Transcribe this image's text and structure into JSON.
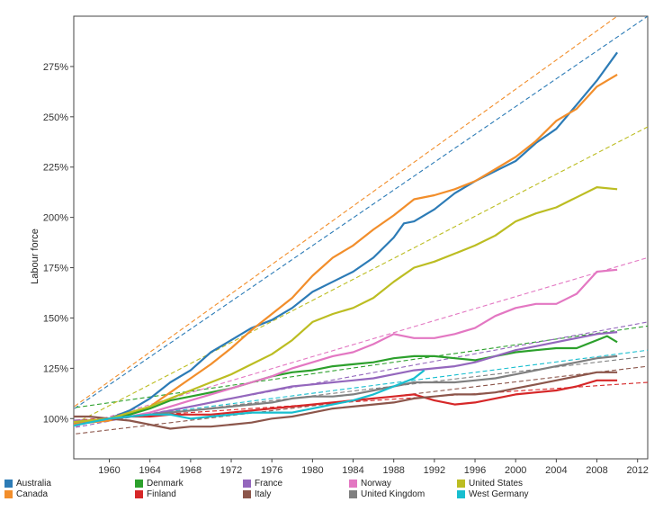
{
  "chart_data": {
    "type": "line",
    "title": "",
    "xlabel": "",
    "ylabel": "Labour force",
    "xlim": [
      1956.5,
      2013
    ],
    "ylim": [
      80,
      300
    ],
    "x_ticks": [
      1960,
      1964,
      1968,
      1972,
      1976,
      1980,
      1984,
      1988,
      1992,
      1996,
      2000,
      2004,
      2008,
      2012
    ],
    "x_tick_labels": [
      "1960",
      "1964",
      "1968",
      "1972",
      "1976",
      "1980",
      "1984",
      "1988",
      "1992",
      "1996",
      "2000",
      "2004",
      "2008",
      "2012"
    ],
    "y_ticks": [
      100,
      125,
      150,
      175,
      200,
      225,
      250,
      275
    ],
    "y_tick_labels": [
      "100%",
      "125%",
      "150%",
      "175%",
      "200%",
      "225%",
      "250%",
      "275%"
    ],
    "grid": false,
    "legend_position": "bottom",
    "series": [
      {
        "name": "Australia",
        "color": "#2c7bb6",
        "points": [
          [
            1956,
            97
          ],
          [
            1958,
            98
          ],
          [
            1960,
            100
          ],
          [
            1962,
            104
          ],
          [
            1964,
            110
          ],
          [
            1966,
            118
          ],
          [
            1968,
            124
          ],
          [
            1970,
            133
          ],
          [
            1972,
            139
          ],
          [
            1974,
            145
          ],
          [
            1976,
            149
          ],
          [
            1978,
            155
          ],
          [
            1980,
            163
          ],
          [
            1982,
            168
          ],
          [
            1984,
            173
          ],
          [
            1986,
            180
          ],
          [
            1988,
            190
          ],
          [
            1989,
            197
          ],
          [
            1990,
            198
          ],
          [
            1992,
            204
          ],
          [
            1994,
            212
          ],
          [
            1996,
            218
          ],
          [
            1998,
            223
          ],
          [
            2000,
            228
          ],
          [
            2002,
            237
          ],
          [
            2004,
            244
          ],
          [
            2006,
            256
          ],
          [
            2008,
            268
          ],
          [
            2010,
            282
          ]
        ],
        "trend": [
          [
            1956,
            103
          ],
          [
            2013,
            300
          ]
        ]
      },
      {
        "name": "Canada",
        "color": "#f28e2b",
        "points": [
          [
            1956,
            97
          ],
          [
            1958,
            98
          ],
          [
            1960,
            99
          ],
          [
            1962,
            102
          ],
          [
            1964,
            106
          ],
          [
            1966,
            113
          ],
          [
            1968,
            120
          ],
          [
            1970,
            127
          ],
          [
            1972,
            135
          ],
          [
            1974,
            144
          ],
          [
            1976,
            152
          ],
          [
            1978,
            160
          ],
          [
            1980,
            171
          ],
          [
            1982,
            180
          ],
          [
            1984,
            186
          ],
          [
            1986,
            194
          ],
          [
            1988,
            201
          ],
          [
            1990,
            209
          ],
          [
            1992,
            211
          ],
          [
            1994,
            214
          ],
          [
            1996,
            218
          ],
          [
            1998,
            224
          ],
          [
            2000,
            230
          ],
          [
            2002,
            238
          ],
          [
            2004,
            248
          ],
          [
            2006,
            254
          ],
          [
            2008,
            265
          ],
          [
            2010,
            271
          ]
        ],
        "trend": [
          [
            1956,
            104
          ],
          [
            2010,
            300
          ]
        ]
      },
      {
        "name": "Denmark",
        "color": "#2ca02c",
        "points": [
          [
            1956,
            98
          ],
          [
            1958,
            99
          ],
          [
            1960,
            100
          ],
          [
            1962,
            102
          ],
          [
            1964,
            105
          ],
          [
            1966,
            109
          ],
          [
            1968,
            111
          ],
          [
            1970,
            113
          ],
          [
            1972,
            115
          ],
          [
            1974,
            118
          ],
          [
            1976,
            121
          ],
          [
            1978,
            123
          ],
          [
            1980,
            124
          ],
          [
            1982,
            126
          ],
          [
            1984,
            127
          ],
          [
            1986,
            128
          ],
          [
            1988,
            130
          ],
          [
            1990,
            131
          ],
          [
            1992,
            131
          ],
          [
            1994,
            130
          ],
          [
            1996,
            129
          ],
          [
            1998,
            131
          ],
          [
            2000,
            133
          ],
          [
            2002,
            134
          ],
          [
            2004,
            135
          ],
          [
            2006,
            135
          ],
          [
            2008,
            139
          ],
          [
            2009,
            141
          ],
          [
            2010,
            138
          ]
        ],
        "trend": [
          [
            1956,
            105
          ],
          [
            2013,
            146
          ]
        ]
      },
      {
        "name": "Finland",
        "color": "#d62728",
        "points": [
          [
            1956,
            98
          ],
          [
            1958,
            99
          ],
          [
            1960,
            100
          ],
          [
            1962,
            101
          ],
          [
            1964,
            101
          ],
          [
            1966,
            102
          ],
          [
            1968,
            102
          ],
          [
            1970,
            102
          ],
          [
            1972,
            103
          ],
          [
            1974,
            104
          ],
          [
            1976,
            105
          ],
          [
            1978,
            106
          ],
          [
            1980,
            107
          ],
          [
            1982,
            108
          ],
          [
            1984,
            109
          ],
          [
            1986,
            110
          ],
          [
            1988,
            111
          ],
          [
            1990,
            112
          ],
          [
            1992,
            109
          ],
          [
            1994,
            107
          ],
          [
            1996,
            108
          ],
          [
            1998,
            110
          ],
          [
            2000,
            112
          ],
          [
            2002,
            113
          ],
          [
            2004,
            114
          ],
          [
            2006,
            116
          ],
          [
            2008,
            119
          ],
          [
            2010,
            119
          ]
        ],
        "trend": [
          [
            1956,
            99
          ],
          [
            2013,
            118
          ]
        ]
      },
      {
        "name": "France",
        "color": "#9467bd",
        "points": [
          [
            1956,
            99
          ],
          [
            1958,
            99
          ],
          [
            1960,
            100
          ],
          [
            1962,
            101
          ],
          [
            1964,
            102
          ],
          [
            1966,
            104
          ],
          [
            1968,
            106
          ],
          [
            1970,
            108
          ],
          [
            1972,
            110
          ],
          [
            1974,
            112
          ],
          [
            1976,
            114
          ],
          [
            1978,
            116
          ],
          [
            1980,
            117
          ],
          [
            1982,
            118
          ],
          [
            1984,
            119
          ],
          [
            1986,
            120
          ],
          [
            1988,
            122
          ],
          [
            1990,
            124
          ],
          [
            1992,
            125
          ],
          [
            1994,
            126
          ],
          [
            1996,
            128
          ],
          [
            1998,
            131
          ],
          [
            2000,
            134
          ],
          [
            2002,
            136
          ],
          [
            2004,
            138
          ],
          [
            2006,
            140
          ],
          [
            2008,
            142
          ],
          [
            2010,
            143
          ]
        ],
        "trend": [
          [
            1956,
            95
          ],
          [
            2013,
            148
          ]
        ]
      },
      {
        "name": "Italy",
        "color": "#8c564b",
        "points": [
          [
            1956,
            101
          ],
          [
            1958,
            101
          ],
          [
            1960,
            100
          ],
          [
            1962,
            99
          ],
          [
            1964,
            97
          ],
          [
            1966,
            95
          ],
          [
            1968,
            96
          ],
          [
            1970,
            96
          ],
          [
            1972,
            97
          ],
          [
            1974,
            98
          ],
          [
            1976,
            100
          ],
          [
            1978,
            101
          ],
          [
            1980,
            103
          ],
          [
            1982,
            105
          ],
          [
            1984,
            106
          ],
          [
            1986,
            107
          ],
          [
            1988,
            108
          ],
          [
            1990,
            110
          ],
          [
            1992,
            111
          ],
          [
            1994,
            112
          ],
          [
            1996,
            112
          ],
          [
            1998,
            113
          ],
          [
            2000,
            115
          ],
          [
            2002,
            117
          ],
          [
            2004,
            119
          ],
          [
            2006,
            121
          ],
          [
            2008,
            123
          ],
          [
            2010,
            123
          ]
        ],
        "trend": [
          [
            1956,
            92
          ],
          [
            2013,
            126
          ]
        ]
      },
      {
        "name": "Norway",
        "color": "#e377c2",
        "points": [
          [
            1956,
            98
          ],
          [
            1958,
            99
          ],
          [
            1960,
            100
          ],
          [
            1962,
            101
          ],
          [
            1964,
            103
          ],
          [
            1966,
            106
          ],
          [
            1968,
            109
          ],
          [
            1970,
            112
          ],
          [
            1972,
            115
          ],
          [
            1974,
            118
          ],
          [
            1976,
            121
          ],
          [
            1978,
            125
          ],
          [
            1980,
            128
          ],
          [
            1982,
            131
          ],
          [
            1984,
            133
          ],
          [
            1986,
            137
          ],
          [
            1988,
            142
          ],
          [
            1990,
            140
          ],
          [
            1992,
            140
          ],
          [
            1994,
            142
          ],
          [
            1996,
            145
          ],
          [
            1998,
            151
          ],
          [
            2000,
            155
          ],
          [
            2002,
            157
          ],
          [
            2004,
            157
          ],
          [
            2006,
            162
          ],
          [
            2008,
            173
          ],
          [
            2010,
            174
          ]
        ],
        "trend": [
          [
            1956,
            95
          ],
          [
            2013,
            180
          ]
        ]
      },
      {
        "name": "United Kingdom",
        "color": "#7f7f7f",
        "points": [
          [
            1956,
            98
          ],
          [
            1958,
            99
          ],
          [
            1960,
            100
          ],
          [
            1962,
            101
          ],
          [
            1964,
            102
          ],
          [
            1966,
            103
          ],
          [
            1968,
            104
          ],
          [
            1970,
            105
          ],
          [
            1972,
            106
          ],
          [
            1974,
            107
          ],
          [
            1976,
            108
          ],
          [
            1978,
            110
          ],
          [
            1980,
            111
          ],
          [
            1982,
            111
          ],
          [
            1984,
            112
          ],
          [
            1986,
            114
          ],
          [
            1988,
            116
          ],
          [
            1990,
            118
          ],
          [
            1992,
            118
          ],
          [
            1994,
            118
          ],
          [
            1996,
            119
          ],
          [
            1998,
            120
          ],
          [
            2000,
            122
          ],
          [
            2002,
            124
          ],
          [
            2004,
            126
          ],
          [
            2006,
            128
          ],
          [
            2008,
            130
          ],
          [
            2010,
            131
          ]
        ],
        "trend": [
          [
            1956,
            97
          ],
          [
            2013,
            131
          ]
        ]
      },
      {
        "name": "United States",
        "color": "#bcbd22",
        "points": [
          [
            1956,
            98
          ],
          [
            1958,
            99
          ],
          [
            1960,
            100
          ],
          [
            1962,
            103
          ],
          [
            1964,
            106
          ],
          [
            1966,
            110
          ],
          [
            1968,
            114
          ],
          [
            1970,
            118
          ],
          [
            1972,
            122
          ],
          [
            1974,
            127
          ],
          [
            1976,
            132
          ],
          [
            1978,
            139
          ],
          [
            1980,
            148
          ],
          [
            1982,
            152
          ],
          [
            1984,
            155
          ],
          [
            1986,
            160
          ],
          [
            1988,
            168
          ],
          [
            1990,
            175
          ],
          [
            1992,
            178
          ],
          [
            1994,
            182
          ],
          [
            1996,
            186
          ],
          [
            1998,
            191
          ],
          [
            2000,
            198
          ],
          [
            2002,
            202
          ],
          [
            2004,
            205
          ],
          [
            2006,
            210
          ],
          [
            2008,
            215
          ],
          [
            2010,
            214
          ]
        ],
        "trend": [
          [
            1956,
            96
          ],
          [
            2013,
            245
          ]
        ]
      },
      {
        "name": "West Germany",
        "color": "#17becf",
        "points": [
          [
            1956,
            96
          ],
          [
            1958,
            98
          ],
          [
            1960,
            100
          ],
          [
            1962,
            101
          ],
          [
            1964,
            102
          ],
          [
            1966,
            102
          ],
          [
            1968,
            100
          ],
          [
            1970,
            101
          ],
          [
            1972,
            102
          ],
          [
            1974,
            103
          ],
          [
            1976,
            103
          ],
          [
            1978,
            103
          ],
          [
            1980,
            105
          ],
          [
            1982,
            107
          ],
          [
            1984,
            109
          ],
          [
            1986,
            112
          ],
          [
            1988,
            116
          ],
          [
            1990,
            120
          ],
          [
            1991,
            124
          ]
        ],
        "trend": [
          [
            1956,
            97
          ],
          [
            2013,
            134
          ]
        ]
      }
    ],
    "legend_columns": [
      [
        "Australia",
        "Canada"
      ],
      [
        "Denmark",
        "Finland"
      ],
      [
        "France",
        "Italy"
      ],
      [
        "Norway",
        "United Kingdom"
      ],
      [
        "United States",
        "West Germany"
      ]
    ]
  }
}
